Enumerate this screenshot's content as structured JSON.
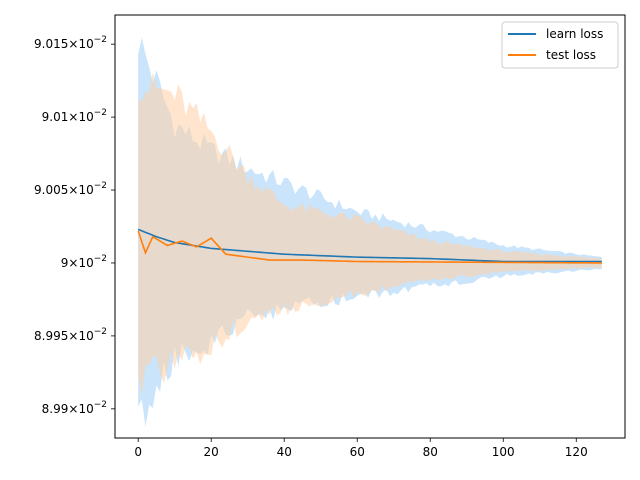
{
  "chart_data": {
    "type": "line",
    "title": "",
    "xlabel": "",
    "ylabel": "",
    "xlim": [
      -6.35,
      133.35
    ],
    "ylim": [
      0.08988,
      0.09017
    ],
    "x_ticks": [
      0,
      20,
      40,
      60,
      80,
      100,
      120
    ],
    "y_ticks": [
      {
        "value": 0.0899,
        "mantissa": "8.99",
        "exponent": "−2"
      },
      {
        "value": 0.08995,
        "mantissa": "8.995",
        "exponent": "−2"
      },
      {
        "value": 0.09,
        "mantissa": "9",
        "exponent": "−2"
      },
      {
        "value": 0.09005,
        "mantissa": "9.005",
        "exponent": "−2"
      },
      {
        "value": 0.0901,
        "mantissa": "9.01",
        "exponent": "−2"
      },
      {
        "value": 0.09015,
        "mantissa": "9.015",
        "exponent": "−2"
      }
    ],
    "y_tick_base": "10",
    "legend_position": "top-right",
    "grid": false,
    "series": [
      {
        "name": "learn loss",
        "color": "#1f77b4",
        "band_color": "#9ecff7",
        "x_start": 0,
        "x_end": 127,
        "mean_knots": [
          [
            0,
            0.090023
          ],
          [
            5,
            0.090018
          ],
          [
            10,
            0.090014
          ],
          [
            20,
            0.09001
          ],
          [
            30,
            0.090008
          ],
          [
            40,
            0.090006
          ],
          [
            60,
            0.090004
          ],
          [
            80,
            0.090003
          ],
          [
            100,
            0.090001
          ],
          [
            127,
            0.090001
          ]
        ],
        "upper_knots": [
          [
            0,
            0.090153
          ],
          [
            10,
            0.090095
          ],
          [
            20,
            0.090077
          ],
          [
            30,
            0.090065
          ],
          [
            40,
            0.090055
          ],
          [
            60,
            0.090035
          ],
          [
            80,
            0.090023
          ],
          [
            100,
            0.090012
          ],
          [
            127,
            0.090004
          ]
        ],
        "lower_knots": [
          [
            0,
            0.08989
          ],
          [
            10,
            0.089936
          ],
          [
            20,
            0.089946
          ],
          [
            30,
            0.089962
          ],
          [
            40,
            0.089968
          ],
          [
            60,
            0.089977
          ],
          [
            80,
            0.089984
          ],
          [
            100,
            0.089991
          ],
          [
            127,
            0.089996
          ]
        ]
      },
      {
        "name": "test loss",
        "color": "#ff7f0e",
        "band_color": "#ffcfa6",
        "x_start": 0,
        "x_end": 127,
        "mean_knots": [
          [
            0,
            0.090022
          ],
          [
            2,
            0.090007
          ],
          [
            4,
            0.090018
          ],
          [
            8,
            0.090012
          ],
          [
            12,
            0.090015
          ],
          [
            16,
            0.090011
          ],
          [
            20,
            0.090017
          ],
          [
            24,
            0.090006
          ],
          [
            30,
            0.090004
          ],
          [
            36,
            0.090002
          ],
          [
            45,
            0.090002
          ],
          [
            60,
            0.090001
          ],
          [
            127,
            0.09
          ]
        ],
        "upper_knots": [
          [
            0,
            0.090123
          ],
          [
            10,
            0.090115
          ],
          [
            20,
            0.09009
          ],
          [
            30,
            0.09006
          ],
          [
            40,
            0.09004
          ],
          [
            60,
            0.09003
          ],
          [
            80,
            0.090015
          ],
          [
            100,
            0.090008
          ],
          [
            127,
            0.090003
          ]
        ],
        "lower_knots": [
          [
            0,
            0.08992
          ],
          [
            10,
            0.08993
          ],
          [
            20,
            0.089945
          ],
          [
            30,
            0.08996
          ],
          [
            40,
            0.089968
          ],
          [
            60,
            0.089979
          ],
          [
            80,
            0.089988
          ],
          [
            100,
            0.089994
          ],
          [
            127,
            0.089997
          ]
        ]
      }
    ]
  }
}
